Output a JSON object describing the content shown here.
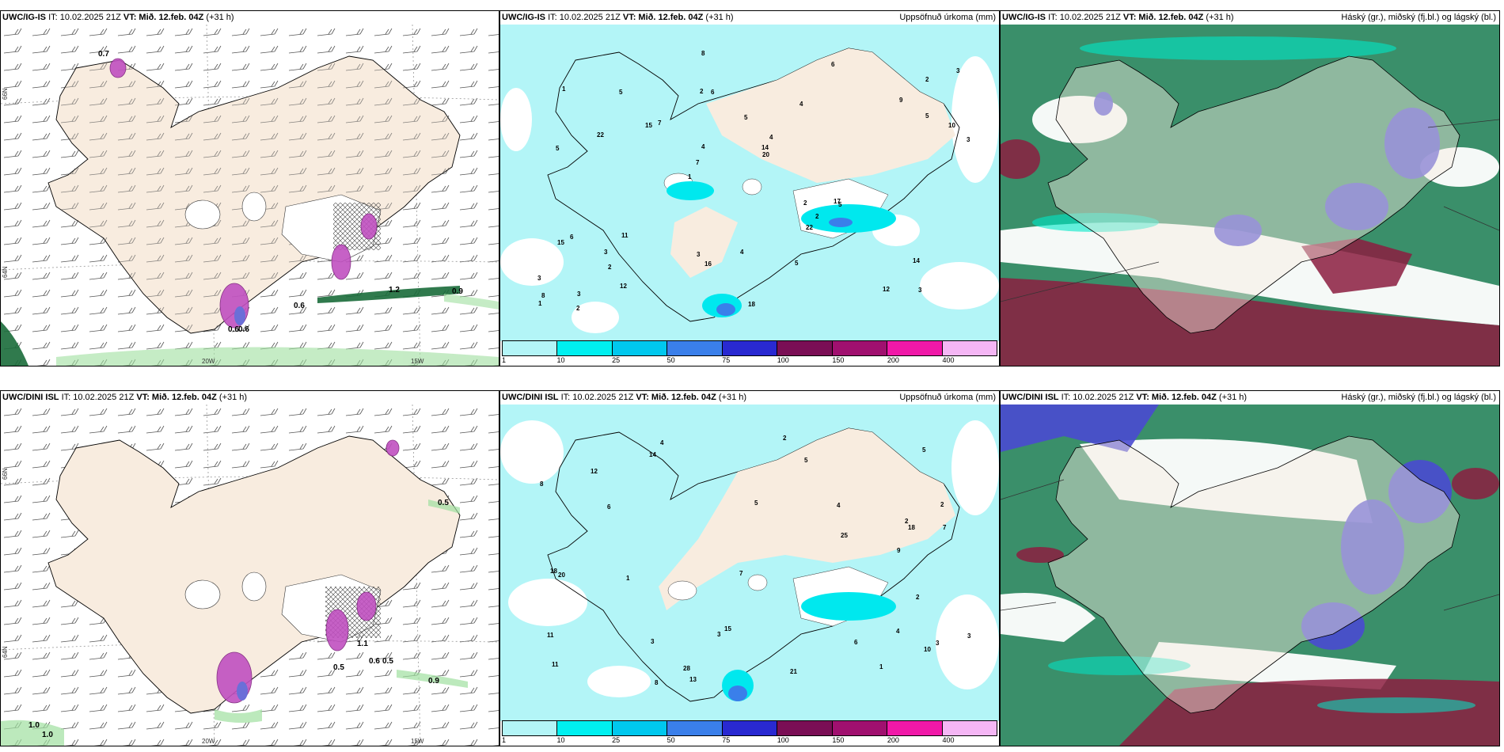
{
  "panels": {
    "p1": {
      "model": "UWC/IG-IS",
      "it": "IT: 10.02.2025 21Z",
      "vt_label": "VT:",
      "vt": "Mið. 12.feb. 04Z",
      "lead": "(+31 h)",
      "right": ""
    },
    "p2": {
      "model": "UWC/IG-IS",
      "it": "IT: 10.02.2025 21Z",
      "vt_label": "VT:",
      "vt": "Mið. 12.feb. 04Z",
      "lead": "(+31 h)",
      "right": "Uppsöfnuð úrkoma (mm)"
    },
    "p3": {
      "model": "UWC/IG-IS",
      "it": "IT: 10.02.2025 21Z",
      "vt_label": "VT:",
      "vt": "Mið. 12.feb. 04Z",
      "lead": "(+31 h)",
      "right": "Háský (gr.), miðský (fj.bl.) og lágský (bl.)"
    },
    "p4": {
      "model": "UWC/DINI ISL",
      "it": "IT: 10.02.2025 21Z",
      "vt_label": "VT:",
      "vt": "Mið. 12.feb. 04Z",
      "lead": "(+31 h)",
      "right": ""
    },
    "p5": {
      "model": "UWC/DINI ISL",
      "it": "IT: 10.02.2025 21Z",
      "vt_label": "VT:",
      "vt": "Mið. 12.feb. 04Z",
      "lead": "(+31 h)",
      "right": "Uppsöfnuð úrkoma (mm)"
    },
    "p6": {
      "model": "UWC/DINI ISL",
      "it": "IT: 10.02.2025 21Z",
      "vt_label": "VT:",
      "vt": "Mið. 12.feb. 04Z",
      "lead": "(+31 h)",
      "right": "Háský (gr.), miðský (fj.bl.) og lágský (bl.)"
    }
  },
  "axes": {
    "lon_20": "20W",
    "lon_15": "15W",
    "lat_66": "66N",
    "lat_64": "64N"
  },
  "precip_scale": {
    "labels": [
      "1",
      "10",
      "25",
      "50",
      "75",
      "100",
      "150",
      "200",
      "400"
    ],
    "colors": [
      "#b3f5f7",
      "#00f0f0",
      "#00c8ee",
      "#3a7fea",
      "#2929d1",
      "#7a0e55",
      "#a0106f",
      "#f018a8",
      "#f5b6f5"
    ]
  },
  "wind_labels": {
    "p1": [
      "0.7",
      "0.6",
      "1.2",
      "0.9",
      "0.6",
      "0.6"
    ],
    "p4": [
      "0.5",
      "0.9",
      "1.0",
      "1.0",
      "0.5",
      "0.6",
      "0.5",
      "1.1"
    ]
  },
  "precip_values": {
    "p2": [
      "3",
      "5",
      "2",
      "1",
      "4",
      "3",
      "2",
      "5",
      "6",
      "7",
      "3",
      "2",
      "6",
      "4",
      "5",
      "1",
      "8",
      "3",
      "2",
      "5",
      "7",
      "3",
      "4",
      "5",
      "6",
      "11",
      "12",
      "14",
      "17",
      "18",
      "15",
      "22",
      "22",
      "12",
      "10",
      "14",
      "8",
      "16",
      "20",
      "15",
      "9",
      "3",
      "2",
      "5",
      "3",
      "2",
      "1",
      "4"
    ],
    "p5": [
      "4",
      "2",
      "3",
      "5",
      "11",
      "4",
      "2",
      "3",
      "5",
      "6",
      "7",
      "8",
      "9",
      "13",
      "11",
      "12",
      "10",
      "14",
      "15",
      "18",
      "18",
      "20",
      "21",
      "25",
      "28",
      "3",
      "2",
      "5",
      "4",
      "3",
      "1",
      "6",
      "8",
      "7",
      "2",
      "1"
    ]
  },
  "colors": {
    "land": "#f8ecdf",
    "cyan_light": "#b3f5f7",
    "cyan": "#00e8ee",
    "purple": "#c050c0",
    "green": "#1a6b3a",
    "cloud_green": "#3a8f6a",
    "cloud_blue": "#4a4ad2",
    "cloud_red": "#8c1e40"
  }
}
